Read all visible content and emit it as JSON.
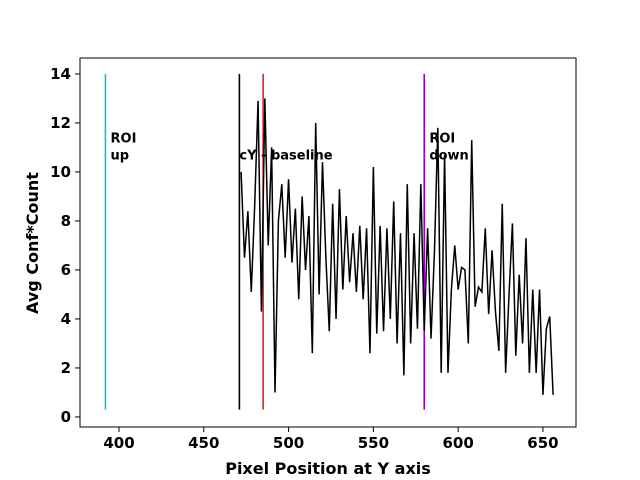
{
  "chart_data": {
    "type": "line",
    "xlabel": "Pixel Position at Y axis",
    "ylabel": "Avg Conf*Count",
    "xlim": [
      377,
      669.5
    ],
    "ylim": [
      -0.41,
      14.65
    ],
    "xticks": [
      400,
      450,
      500,
      550,
      600,
      650
    ],
    "yticks": [
      0,
      2,
      4,
      6,
      8,
      10,
      12,
      14
    ],
    "x": [
      472,
      474,
      476,
      478,
      480,
      482,
      484,
      486,
      488,
      490,
      492,
      494,
      496,
      498,
      500,
      502,
      504,
      506,
      508,
      510,
      512,
      514,
      516,
      518,
      520,
      522,
      524,
      526,
      528,
      530,
      532,
      534,
      536,
      538,
      540,
      542,
      544,
      546,
      548,
      550,
      552,
      554,
      556,
      558,
      560,
      562,
      564,
      566,
      568,
      570,
      572,
      574,
      576,
      578,
      580,
      582,
      584,
      586,
      588,
      590,
      592,
      594,
      596,
      598,
      600,
      602,
      604,
      606,
      608,
      610,
      612,
      614,
      616,
      618,
      620,
      622,
      624,
      626,
      628,
      630,
      632,
      634,
      636,
      638,
      640,
      642,
      644,
      646,
      648,
      650,
      652,
      654,
      656
    ],
    "series": [
      {
        "color": "#000000",
        "values": [
          10,
          6.5,
          8.4,
          5.1,
          8.6,
          12.9,
          4.3,
          13,
          7,
          11,
          1,
          8,
          9.5,
          6.5,
          9.7,
          6.3,
          8.5,
          4.8,
          9,
          6,
          8.2,
          2.6,
          12,
          5,
          10.4,
          6.5,
          3.5,
          8.7,
          4,
          9.3,
          5.2,
          8.2,
          5.5,
          7.5,
          5.1,
          7.8,
          4.8,
          7.7,
          2.6,
          10.2,
          3.4,
          7.8,
          3.5,
          7.7,
          4,
          8.8,
          3,
          7.5,
          1.7,
          9.5,
          3,
          7.5,
          3.6,
          9.5,
          3.5,
          7.7,
          3.2,
          6.7,
          11.8,
          1.8,
          10.7,
          1.8,
          5.2,
          7,
          5.2,
          6.1,
          6,
          3,
          11.3,
          4.5,
          5.3,
          5.1,
          7.7,
          4.2,
          6.8,
          4.3,
          2.7,
          8.7,
          1.8,
          5,
          7.9,
          2.5,
          5.8,
          3,
          7.3,
          1.8,
          5.2,
          1.8,
          5.2,
          0.9,
          3.6,
          4.1,
          0.9
        ]
      }
    ],
    "vlines": [
      {
        "x": 392,
        "ymin": 0.3,
        "ymax": 14,
        "color": "#17becf"
      },
      {
        "x": 471,
        "ymin": 0.3,
        "ymax": 14,
        "color": "#000000"
      },
      {
        "x": 485,
        "ymin": 0.3,
        "ymax": 14,
        "color": "#d62728"
      },
      {
        "x": 580,
        "ymin": 0.3,
        "ymax": 14,
        "color": "#9400d3"
      }
    ],
    "annotations": [
      {
        "lines": [
          "ROI",
          "up"
        ],
        "x": 395,
        "y": 11.2
      },
      {
        "lines": [
          "cY - baseline"
        ],
        "x": 471,
        "y": 10.5
      },
      {
        "lines": [
          "ROI",
          "down"
        ],
        "x": 583,
        "y": 11.2
      }
    ]
  }
}
